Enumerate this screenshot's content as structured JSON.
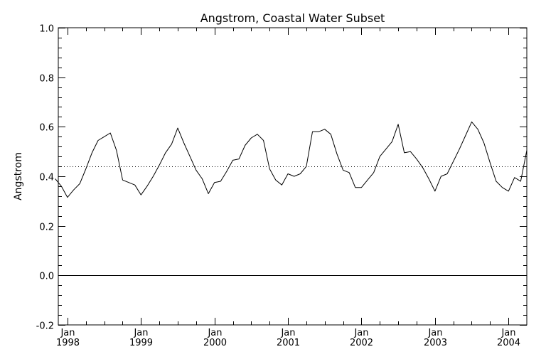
{
  "chart_data": {
    "type": "line",
    "title": "Angstrom, Coastal Water Subset",
    "xlabel": "",
    "ylabel": "Angstrom",
    "ylim": [
      -0.2,
      1.0
    ],
    "xlim": [
      1997.875,
      2004.25
    ],
    "yticks": [
      -0.2,
      0.0,
      0.2,
      0.4,
      0.6,
      0.8,
      1.0
    ],
    "ytick_labels": [
      "-0.2",
      "0.0",
      "0.2",
      "0.4",
      "0.6",
      "0.8",
      "1.0"
    ],
    "xticks": [
      {
        "month": "Jan",
        "year": "1998",
        "value": 1998
      },
      {
        "month": "Jan",
        "year": "1999",
        "value": 1999
      },
      {
        "month": "Jan",
        "year": "2000",
        "value": 2000
      },
      {
        "month": "Jan",
        "year": "2001",
        "value": 2001
      },
      {
        "month": "Jan",
        "year": "2002",
        "value": 2002
      },
      {
        "month": "Jan",
        "year": "2003",
        "value": 2003
      },
      {
        "month": "Jan",
        "year": "2004",
        "value": 2004
      }
    ],
    "reference_lines": [
      {
        "y": 0.0,
        "style": "solid"
      },
      {
        "y": 0.44,
        "style": "dotted"
      }
    ],
    "grid": false,
    "series": [
      {
        "x": [
          "1997-11",
          "1997-12",
          "1998-01",
          "1998-02",
          "1998-03",
          "1998-04",
          "1998-05",
          "1998-06",
          "1998-07",
          "1998-08",
          "1998-09",
          "1998-10",
          "1998-11",
          "1998-12",
          "1999-01",
          "1999-02",
          "1999-03",
          "1999-04",
          "1999-05",
          "1999-06",
          "1999-07",
          "1999-08",
          "1999-09",
          "1999-10",
          "1999-11",
          "1999-12",
          "2000-01",
          "2000-02",
          "2000-03",
          "2000-04",
          "2000-05",
          "2000-06",
          "2000-07",
          "2000-08",
          "2000-09",
          "2000-10",
          "2000-11",
          "2000-12",
          "2001-01",
          "2001-02",
          "2001-03",
          "2001-04",
          "2001-05",
          "2001-06",
          "2001-07",
          "2001-08",
          "2001-09",
          "2001-10",
          "2001-11",
          "2001-12",
          "2002-01",
          "2002-02",
          "2002-03",
          "2002-04",
          "2002-05",
          "2002-06",
          "2002-07",
          "2002-08",
          "2002-09",
          "2002-10",
          "2002-11",
          "2002-12",
          "2003-01",
          "2003-02",
          "2003-03",
          "2003-04",
          "2003-05",
          "2003-06",
          "2003-07",
          "2003-08",
          "2003-09",
          "2003-10",
          "2003-11",
          "2003-12",
          "2004-01",
          "2004-02",
          "2004-03",
          "2004-04"
        ],
        "values": [
          0.39,
          0.36,
          0.315,
          0.345,
          0.37,
          0.43,
          0.495,
          0.545,
          0.56,
          0.575,
          0.505,
          0.385,
          0.375,
          0.365,
          0.325,
          0.36,
          0.4,
          0.445,
          0.495,
          0.53,
          0.595,
          0.535,
          0.48,
          0.425,
          0.39,
          0.33,
          0.375,
          0.38,
          0.42,
          0.465,
          0.47,
          0.525,
          0.555,
          0.57,
          0.545,
          0.43,
          0.385,
          0.365,
          0.41,
          0.4,
          0.41,
          0.44,
          0.58,
          0.58,
          0.59,
          0.57,
          0.49,
          0.425,
          0.415,
          0.355,
          0.355,
          0.385,
          0.415,
          0.48,
          0.51,
          0.54,
          0.61,
          0.495,
          0.5,
          0.47,
          0.435,
          0.39,
          0.34,
          0.4,
          0.41,
          0.46,
          0.51,
          0.565,
          0.62,
          0.59,
          0.535,
          0.455,
          0.38,
          0.355,
          0.34,
          0.395,
          0.38,
          0.505
        ]
      }
    ]
  }
}
